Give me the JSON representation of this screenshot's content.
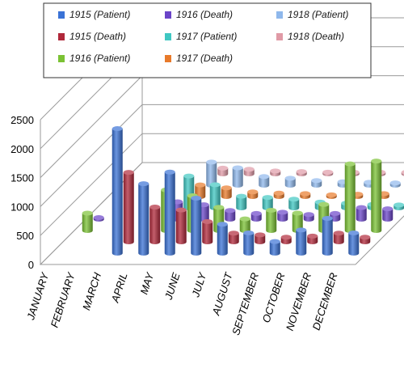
{
  "chart_data": {
    "type": "bar",
    "title": "",
    "xlabel": "",
    "ylabel": "",
    "ylim": [
      0,
      2500
    ],
    "yticks": [
      "0",
      "500",
      "1000",
      "1500",
      "2000",
      "2500"
    ],
    "categories": [
      "JANUARY",
      "FEBRUARY",
      "MARCH",
      "APRIL",
      "MAY",
      "JUNE",
      "JULY",
      "AUGUST",
      "SEPTEMBER",
      "OCTOBER",
      "NOVEMBER",
      "DECEMBER"
    ],
    "grid": true,
    "legend_position": "top",
    "series": [
      {
        "name": "1915 (Patient)",
        "color": "#3a72d6",
        "values": [
          null,
          null,
          2150,
          1200,
          1400,
          950,
          500,
          350,
          200,
          400,
          600,
          350
        ]
      },
      {
        "name": "1915 (Death)",
        "color": "#b0283a",
        "values": [
          null,
          null,
          1200,
          600,
          550,
          350,
          150,
          120,
          80,
          100,
          150,
          80
        ]
      },
      {
        "name": "1916 (Patient)",
        "color": "#7bc234",
        "values": [
          300,
          null,
          null,
          700,
          600,
          400,
          200,
          350,
          300,
          450,
          1150,
          1200
        ]
      },
      {
        "name": "1916 (Death)",
        "color": "#6a44c8",
        "values": [
          10,
          null,
          null,
          300,
          250,
          150,
          100,
          120,
          80,
          100,
          200,
          180
        ]
      },
      {
        "name": "1917 (Patient)",
        "color": "#3fc7c2",
        "values": [
          null,
          null,
          null,
          550,
          400,
          200,
          180,
          150,
          100,
          80,
          60,
          50
        ]
      },
      {
        "name": "1917 (Death)",
        "color": "#e87a2a",
        "values": [
          null,
          null,
          null,
          200,
          150,
          80,
          60,
          50,
          30,
          40,
          50,
          40
        ]
      },
      {
        "name": "1918 (Patient)",
        "color": "#8fb8ec",
        "values": [
          null,
          null,
          null,
          400,
          300,
          150,
          120,
          80,
          60,
          50,
          40,
          30
        ]
      },
      {
        "name": "1918 (Death)",
        "color": "#e09aa6",
        "values": [
          null,
          null,
          null,
          100,
          80,
          50,
          40,
          30,
          20,
          20,
          20,
          20
        ]
      }
    ]
  }
}
